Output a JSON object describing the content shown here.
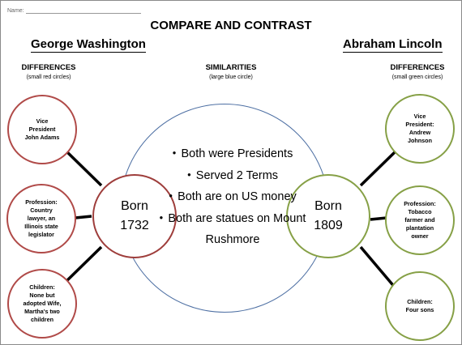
{
  "header": {
    "name_label": "Name:",
    "title": "COMPARE AND CONTRAST",
    "left_person": "George Washington",
    "right_person": "Abraham Lincoln"
  },
  "columns": {
    "left": {
      "heading": "DIFFERENCES",
      "note": "(small red circles)"
    },
    "center": {
      "heading": "SIMILARITIES",
      "note": "(large blue circle)"
    },
    "right": {
      "heading": "DIFFERENCES",
      "note": "(small green circles)"
    }
  },
  "washington": {
    "born": "Born\n1732",
    "differences": [
      "Vice\nPresident\nJohn Adams",
      "Profession:\nCountry\nlawyer, an\nIllinois state\nlegislator",
      "Children:\nNone but\nadopted Wife,\nMartha's two\nchildren"
    ]
  },
  "lincoln": {
    "born": "Born\n1809",
    "differences": [
      "Vice\nPresident:\nAndrew\nJohnson",
      "Profession:\nTobacco\nfarmer and\nplantation\nowner",
      "Children:\nFour sons"
    ]
  },
  "similarities": [
    "Both were Presidents",
    "Served 2 Terms",
    "Both are on US money",
    "Both are statues on Mount Rushmore"
  ],
  "colors": {
    "washington_circles": "#b04a48",
    "lincoln_circles": "#86a046",
    "similarities_circle": "#4d6fa3"
  }
}
